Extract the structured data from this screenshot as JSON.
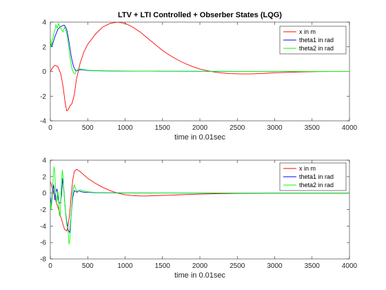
{
  "chart_data": [
    {
      "type": "line",
      "title": "LTV + LTI Controlled + Obserber States (LQG)",
      "xlabel": "time in 0.01sec",
      "ylabel": "",
      "xlim": [
        0,
        4000
      ],
      "ylim": [
        -4,
        4
      ],
      "xticks": [
        0,
        500,
        1000,
        1500,
        2000,
        2500,
        3000,
        3500,
        4000
      ],
      "yticks": [
        -4,
        -2,
        0,
        2,
        4
      ],
      "xtick_labels": [
        "0",
        "500",
        "1000",
        "1500",
        "2000",
        "2500",
        "3000",
        "3500",
        "4000"
      ],
      "ytick_labels": [
        "-4",
        "-2",
        "0",
        "2",
        "4"
      ],
      "grid": false,
      "legend_position": "top-right",
      "series": [
        {
          "name": "x in m",
          "color": "#ff0000",
          "x": [
            0,
            30,
            60,
            100,
            140,
            170,
            200,
            220,
            240,
            260,
            290,
            320,
            350,
            400,
            450,
            500,
            600,
            700,
            800,
            900,
            1000,
            1100,
            1200,
            1300,
            1400,
            1500,
            1600,
            1700,
            1800,
            1900,
            2000,
            2100,
            2200,
            2300,
            2400,
            2500,
            2600,
            2700,
            2800,
            2900,
            3000,
            3200,
            3400,
            3600,
            3800,
            4000
          ],
          "y": [
            0,
            0.3,
            0.5,
            0.4,
            -0.2,
            -1.2,
            -2.6,
            -3.2,
            -3.1,
            -2.8,
            -2.6,
            -1.9,
            -0.6,
            0.7,
            1.6,
            2.2,
            3.0,
            3.6,
            3.9,
            4.0,
            3.9,
            3.6,
            3.2,
            2.7,
            2.2,
            1.7,
            1.3,
            0.95,
            0.65,
            0.4,
            0.2,
            0.06,
            -0.05,
            -0.12,
            -0.17,
            -0.19,
            -0.2,
            -0.19,
            -0.17,
            -0.14,
            -0.11,
            -0.06,
            -0.03,
            -0.01,
            0,
            0
          ]
        },
        {
          "name": "theta1 in rad",
          "color": "#0000ff",
          "x": [
            0,
            20,
            40,
            60,
            80,
            100,
            130,
            160,
            190,
            220,
            250,
            280,
            310,
            340,
            370,
            400,
            450,
            500,
            600,
            800,
            1000,
            1500,
            2000,
            2500,
            3000,
            3500,
            4000
          ],
          "y": [
            2.2,
            2.0,
            2.4,
            2.8,
            3.1,
            3.4,
            3.6,
            3.7,
            3.75,
            3.4,
            2.4,
            1.2,
            0.4,
            0.05,
            0.1,
            0.15,
            0.12,
            0.08,
            0.05,
            0.04,
            0.03,
            0.02,
            0.01,
            0,
            0,
            0,
            0
          ]
        },
        {
          "name": "theta2 in rad",
          "color": "#00ff00",
          "x": [
            0,
            15,
            30,
            45,
            60,
            75,
            90,
            110,
            130,
            150,
            170,
            190,
            210,
            230,
            250,
            270,
            290,
            310,
            330,
            350,
            400,
            450,
            500,
            600,
            800,
            1000,
            1500,
            2000,
            2500,
            3000,
            3500,
            4000
          ],
          "y": [
            2.8,
            2.0,
            2.6,
            3.0,
            3.3,
            3.8,
            3.5,
            3.9,
            3.6,
            3.4,
            3.2,
            3.6,
            3.3,
            2.8,
            1.8,
            0.9,
            0.2,
            -0.1,
            -0.2,
            0.1,
            0.2,
            0.15,
            0.1,
            0.07,
            0.05,
            0.04,
            0.02,
            0.01,
            0,
            0,
            0,
            0
          ]
        }
      ]
    },
    {
      "type": "line",
      "title": "",
      "xlabel": "time in 0.01sec",
      "ylabel": "",
      "xlim": [
        0,
        4000
      ],
      "ylim": [
        -8,
        4
      ],
      "xticks": [
        0,
        500,
        1000,
        1500,
        2000,
        2500,
        3000,
        3500,
        4000
      ],
      "yticks": [
        -8,
        -6,
        -4,
        -2,
        0,
        2,
        4
      ],
      "xtick_labels": [
        "0",
        "500",
        "1000",
        "1500",
        "2000",
        "2500",
        "3000",
        "3500",
        "4000"
      ],
      "ytick_labels": [
        "-8",
        "-6",
        "-4",
        "-2",
        "0",
        "2",
        "4"
      ],
      "grid": false,
      "legend_position": "top-right",
      "series": [
        {
          "name": "x in m",
          "color": "#ff0000",
          "x": [
            0,
            20,
            40,
            60,
            80,
            100,
            130,
            160,
            190,
            220,
            240,
            260,
            280,
            300,
            320,
            350,
            400,
            450,
            500,
            600,
            700,
            800,
            900,
            1000,
            1100,
            1200,
            1300,
            1400,
            1600,
            1800,
            2000,
            2200,
            2500,
            3000,
            3500,
            4000
          ],
          "y": [
            1.4,
            0.8,
            0.2,
            -0.4,
            -1.2,
            -1.6,
            -2.6,
            -3.5,
            -4.4,
            -4.6,
            -3.8,
            -2.4,
            -0.2,
            1.6,
            2.6,
            2.9,
            2.6,
            2.2,
            1.8,
            1.2,
            0.7,
            0.3,
            0.0,
            -0.2,
            -0.3,
            -0.35,
            -0.35,
            -0.3,
            -0.25,
            -0.18,
            -0.12,
            -0.07,
            -0.03,
            0,
            0,
            0
          ]
        },
        {
          "name": "theta1 in rad",
          "color": "#0000ff",
          "x": [
            0,
            15,
            30,
            45,
            60,
            75,
            90,
            105,
            120,
            135,
            150,
            165,
            180,
            200,
            220,
            240,
            260,
            280,
            300,
            320,
            340,
            360,
            380,
            400,
            450,
            500,
            600,
            800,
            1000,
            1500,
            2000,
            2500,
            3000,
            3500,
            4000
          ],
          "y": [
            -0.5,
            -1.5,
            0.2,
            1.0,
            -0.8,
            0.2,
            0.5,
            -0.8,
            -1.2,
            -1.2,
            -0.2,
            1.8,
            0.5,
            -2.0,
            -3.5,
            -4.5,
            -4.8,
            -2.5,
            -0.5,
            0.3,
            0.2,
            0.1,
            0.3,
            0.2,
            0.1,
            0.1,
            0.05,
            0.03,
            0.02,
            0.01,
            0,
            0,
            0,
            0,
            0
          ]
        },
        {
          "name": "theta2 in rad",
          "color": "#00ff00",
          "x": [
            0,
            10,
            20,
            30,
            40,
            50,
            60,
            70,
            80,
            90,
            100,
            110,
            120,
            130,
            140,
            150,
            160,
            170,
            180,
            190,
            200,
            210,
            220,
            230,
            240,
            250,
            260,
            270,
            280,
            290,
            300,
            320,
            340,
            360,
            380,
            400,
            450,
            500,
            600,
            800,
            1000,
            1500,
            2000,
            2500,
            3000,
            3500,
            4000
          ],
          "y": [
            -1.0,
            -2.0,
            -0.5,
            0.8,
            2.0,
            3.2,
            2.5,
            0.5,
            -1.2,
            -0.8,
            0.2,
            -0.5,
            -2.6,
            -2.8,
            -1.0,
            1.5,
            2.8,
            2.0,
            0.3,
            -0.8,
            -2.0,
            -3.0,
            -3.8,
            -4.2,
            -4.8,
            -6.2,
            -5.8,
            -4.2,
            -2.5,
            -1.2,
            0.2,
            1.0,
            0.5,
            0.2,
            0.3,
            0.4,
            0.25,
            0.15,
            0.08,
            0.05,
            0.03,
            0.02,
            0.01,
            0,
            0,
            0,
            0
          ]
        }
      ]
    }
  ]
}
